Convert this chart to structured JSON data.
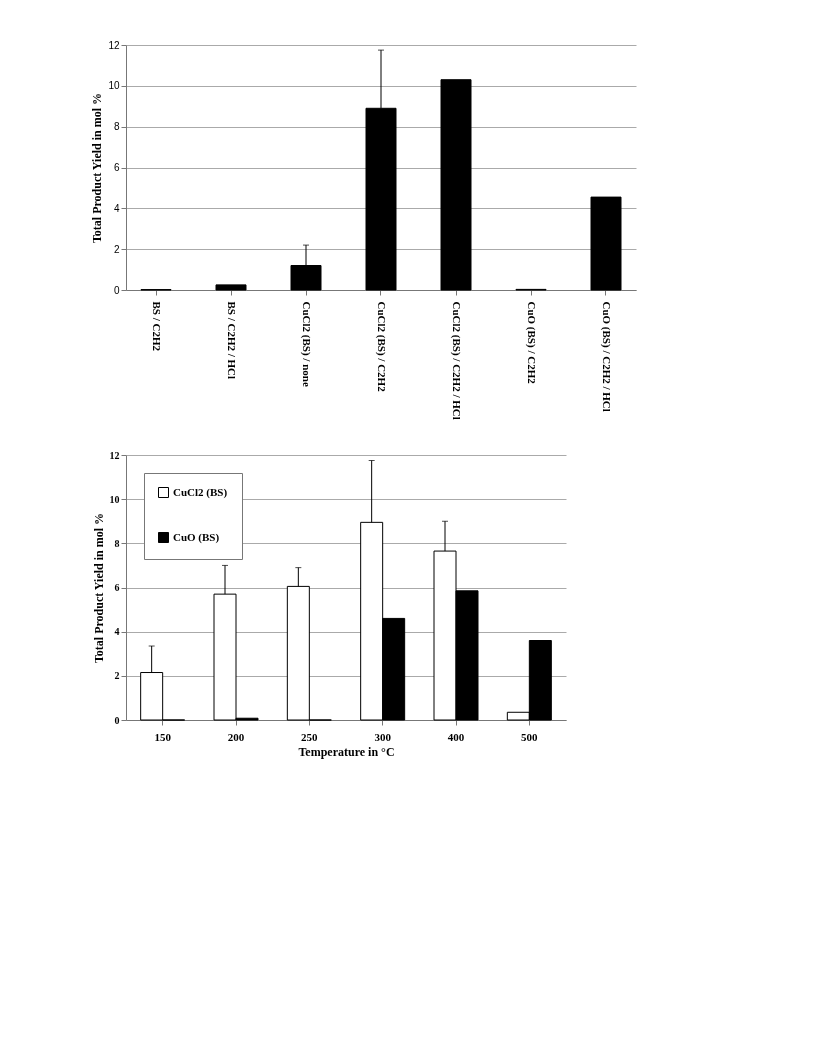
{
  "chart_data": [
    {
      "type": "bar",
      "ylabel": "Total Product Yield in mol %",
      "categories": [
        "BS / C2H2",
        "BS / C2H2 / HCl",
        "CuCl2 (BS) / none",
        "CuCl2 (BS) / C2H2",
        "CuCl2 (BS) / C2H2 / HCl",
        "CuO (BS) / C2H2",
        "CuO (BS) / C2H2 / HCl"
      ],
      "values": [
        0.02,
        0.25,
        1.2,
        8.9,
        10.3,
        0.03,
        4.55
      ],
      "errors": [
        null,
        null,
        [
          1.2,
          2.2
        ],
        [
          8.9,
          11.75
        ],
        null,
        null,
        null
      ],
      "color": "#000000",
      "ylim": [
        0,
        12
      ],
      "yticks": [
        0,
        2,
        4,
        6,
        8,
        10,
        12
      ],
      "grid": "y"
    },
    {
      "type": "bar",
      "xlabel": "Temperature in °C",
      "ylabel": "Total Product Yield in mol %",
      "categories": [
        "150",
        "200",
        "250",
        "300",
        "400",
        "500"
      ],
      "series": [
        {
          "name": "CuCl2 (BS)",
          "color": "#ffffff",
          "values": [
            2.15,
            5.7,
            6.05,
            8.95,
            7.65,
            0.35
          ],
          "errors": [
            [
              2.15,
              3.35
            ],
            [
              5.7,
              7.0
            ],
            [
              6.05,
              6.9
            ],
            [
              8.95,
              11.75
            ],
            [
              7.65,
              9.0
            ],
            null
          ]
        },
        {
          "name": "CuO (BS)",
          "color": "#000000",
          "values": [
            0,
            0.08,
            0,
            4.6,
            5.85,
            3.6
          ]
        }
      ],
      "ylim": [
        0,
        12
      ],
      "yticks": [
        0,
        2,
        4,
        6,
        8,
        10,
        12
      ],
      "grid": "y",
      "legend": "top left"
    }
  ]
}
